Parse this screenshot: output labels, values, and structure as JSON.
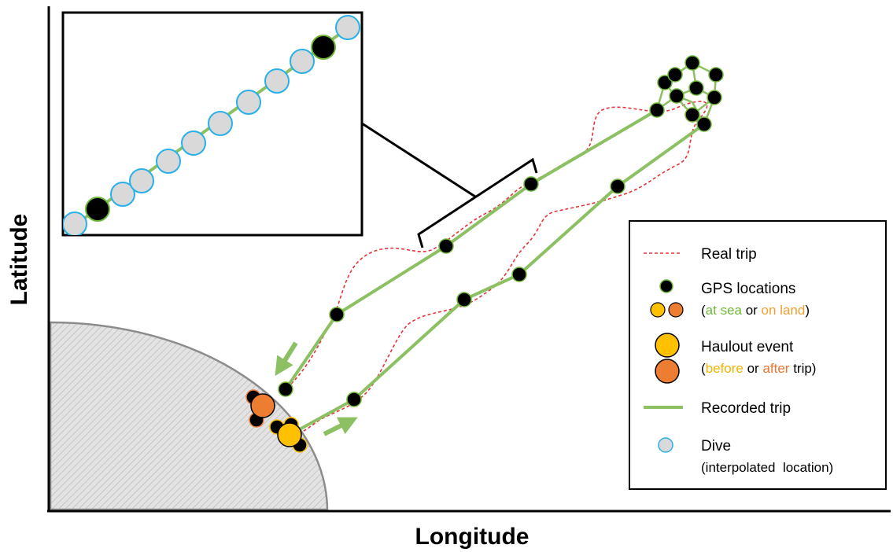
{
  "axes": {
    "x_label": "Longitude",
    "y_label": "Latitude"
  },
  "legend": {
    "real_trip": "Real trip",
    "gps_title": "GPS locations",
    "gps_sub": {
      "open": "(",
      "at_sea": "at sea",
      "or": " or ",
      "on_land": "on land",
      "close": ")"
    },
    "haulout_title": "Haulout event",
    "haulout_sub": {
      "open": "(",
      "before": "before",
      "or": " or ",
      "after": "after",
      "close": " trip)"
    },
    "recorded_trip": "Recorded trip",
    "dive_title": "Dive",
    "dive_sub": "(interpolated  location)"
  },
  "colors": {
    "real_trip": "#e8333a",
    "recorded_trip": "#8cc063",
    "gps_fill": "#000000",
    "gps_stroke": "#70b83a",
    "at_sea_text": "#70b83a",
    "on_land_text": "#f0a030",
    "before_text": "#f5b400",
    "after_text": "#e87530",
    "haulout_before": "#ffc000",
    "haulout_after": "#ed7d31",
    "dive_fill": "#d9d9d9",
    "dive_stroke": "#29b0e8",
    "land_fill": "#e3e3e3",
    "land_stroke": "#8c8c8c"
  }
}
